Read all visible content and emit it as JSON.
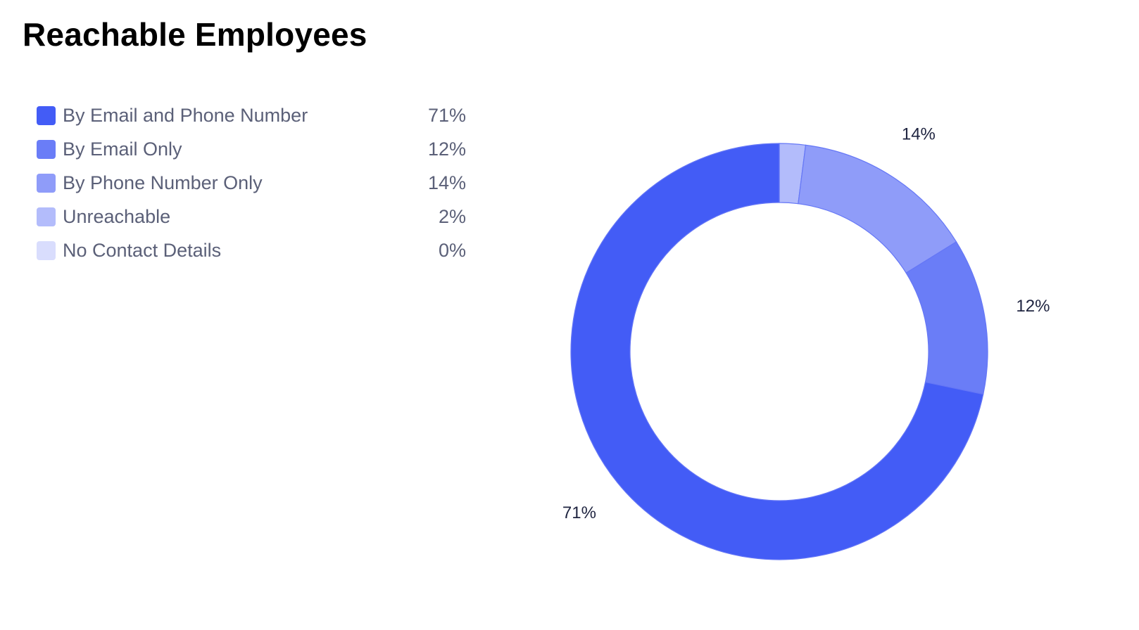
{
  "title": "Reachable Employees",
  "legend": [
    {
      "label": "By Email and Phone Number",
      "value": "71%",
      "color": "#435cf6"
    },
    {
      "label": "By Email Only",
      "value": "12%",
      "color": "#6a7df7"
    },
    {
      "label": "By Phone Number Only",
      "value": "14%",
      "color": "#8f9cf9"
    },
    {
      "label": "Unreachable",
      "value": "2%",
      "color": "#b3bcfb"
    },
    {
      "label": "No Contact Details",
      "value": "0%",
      "color": "#d9ddfd"
    }
  ],
  "chart_data": {
    "type": "pie",
    "title": "Reachable Employees",
    "donut": true,
    "categories": [
      "By Email and Phone Number",
      "By Email Only",
      "By Phone Number Only",
      "Unreachable",
      "No Contact Details"
    ],
    "values": [
      71,
      12,
      14,
      2,
      0
    ],
    "colors": [
      "#435cf6",
      "#6a7df7",
      "#8f9cf9",
      "#b3bcfb",
      "#d9ddfd"
    ],
    "data_labels": [
      "71%",
      "12%",
      "14%",
      "",
      ""
    ],
    "legend_position": "top-left"
  }
}
